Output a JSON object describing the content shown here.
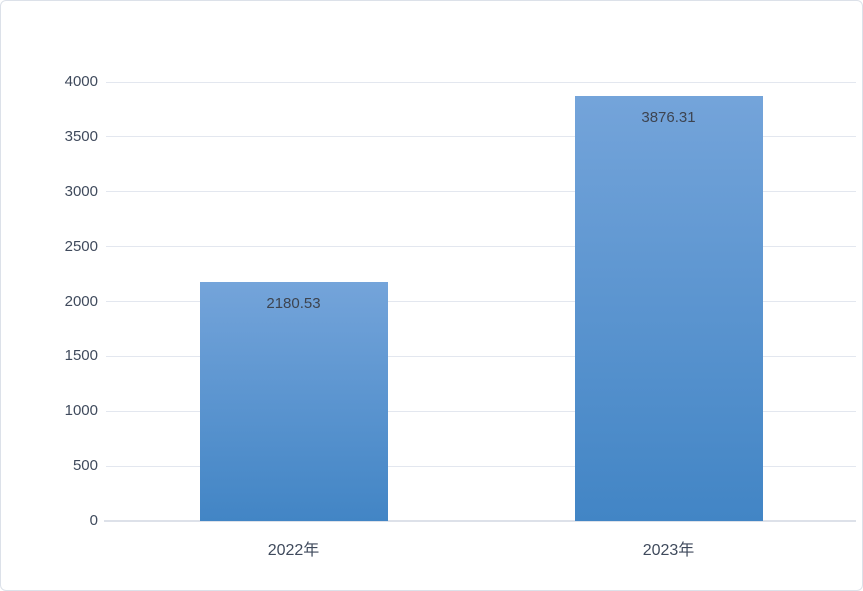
{
  "chart_data": {
    "type": "bar",
    "title": "",
    "categories": [
      "2022年",
      "2023年"
    ],
    "values": [
      2180.53,
      3876.31
    ],
    "data_labels": [
      "2180.53",
      "3876.31"
    ],
    "data_label_position": "inside-end",
    "ylim": [
      0,
      4000
    ],
    "yticks": [
      0,
      500,
      1000,
      1500,
      2000,
      2500,
      3000,
      3500,
      4000
    ],
    "ytick_labels": [
      "0",
      "500",
      "1000",
      "1500",
      "2000",
      "2500",
      "3000",
      "3500",
      "4000"
    ],
    "xlabel": "",
    "ylabel": "",
    "grid": true,
    "legend": "none",
    "colors": {
      "bar_gradient_top": "#74A4DA",
      "bar_gradient_bottom": "#4285C5",
      "gridline": "#E3E7EF",
      "axis_line": "#DDE1E9",
      "tick_label": "#3F4A5C",
      "data_label": "#3D4450",
      "background": "#FFFFFF",
      "frame_border": "#DCE1E9"
    }
  }
}
